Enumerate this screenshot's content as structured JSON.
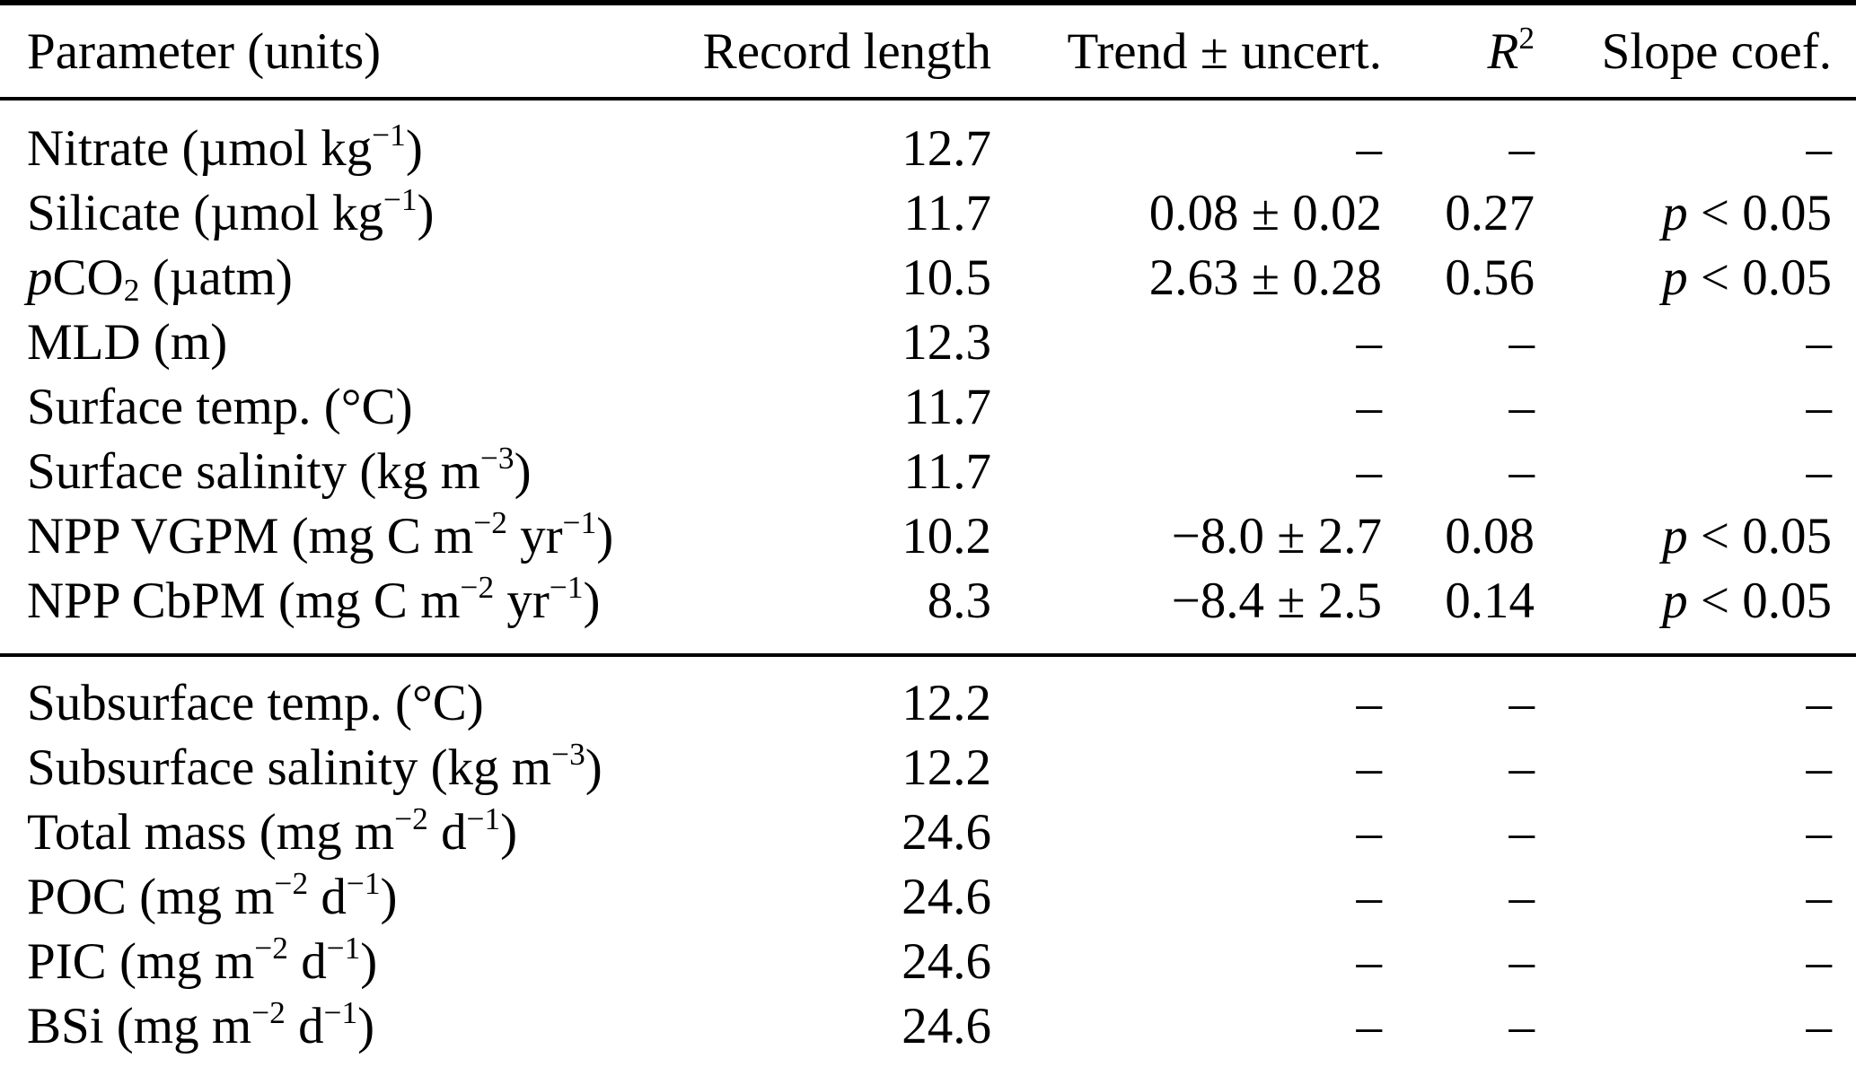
{
  "colors": {
    "background": "#ffffff",
    "text": "#000000",
    "rule": "#000000"
  },
  "table": {
    "header": [
      [
        {
          "t": "Parameter (units)"
        }
      ],
      [
        {
          "t": "Record length"
        }
      ],
      [
        {
          "t": "Trend ± uncert."
        }
      ],
      [
        {
          "t": "R",
          "i": true
        },
        {
          "t": "2",
          "sup": true
        }
      ],
      [
        {
          "t": "Slope coef."
        }
      ]
    ],
    "upper_rows": [
      {
        "param": [
          {
            "t": "Nitrate (µmol kg"
          },
          {
            "t": "−1",
            "sup": true
          },
          {
            "t": ")"
          }
        ],
        "record": "12.7",
        "trend": "–",
        "r2": "–",
        "slope": [
          {
            "t": "–"
          }
        ]
      },
      {
        "param": [
          {
            "t": "Silicate (µmol kg"
          },
          {
            "t": "−1",
            "sup": true
          },
          {
            "t": ")"
          }
        ],
        "record": "11.7",
        "trend": "0.08 ± 0.02",
        "r2": "0.27",
        "slope": [
          {
            "t": "p",
            "i": true
          },
          {
            "t": " < 0.05"
          }
        ]
      },
      {
        "param": [
          {
            "t": "p",
            "i": true
          },
          {
            "t": "CO"
          },
          {
            "t": "2",
            "sub": true
          },
          {
            "t": " (µatm)"
          }
        ],
        "record": "10.5",
        "trend": "2.63 ± 0.28",
        "r2": "0.56",
        "slope": [
          {
            "t": "p",
            "i": true
          },
          {
            "t": " < 0.05"
          }
        ]
      },
      {
        "param": [
          {
            "t": "MLD (m)"
          }
        ],
        "record": "12.3",
        "trend": "–",
        "r2": "–",
        "slope": [
          {
            "t": "–"
          }
        ]
      },
      {
        "param": [
          {
            "t": "Surface temp. (°C)"
          }
        ],
        "record": "11.7",
        "trend": "–",
        "r2": "–",
        "slope": [
          {
            "t": "–"
          }
        ]
      },
      {
        "param": [
          {
            "t": "Surface salinity (kg m"
          },
          {
            "t": "−3",
            "sup": true
          },
          {
            "t": ")"
          }
        ],
        "record": "11.7",
        "trend": "–",
        "r2": "–",
        "slope": [
          {
            "t": "–"
          }
        ]
      },
      {
        "param": [
          {
            "t": "NPP VGPM (mg C m"
          },
          {
            "t": "−2",
            "sup": true
          },
          {
            "t": " yr"
          },
          {
            "t": "−1",
            "sup": true
          },
          {
            "t": ")"
          }
        ],
        "record": "10.2",
        "trend": "−8.0 ± 2.7",
        "r2": "0.08",
        "slope": [
          {
            "t": "p",
            "i": true
          },
          {
            "t": " < 0.05"
          }
        ]
      },
      {
        "param": [
          {
            "t": "NPP CbPM (mg C m"
          },
          {
            "t": "−2",
            "sup": true
          },
          {
            "t": " yr"
          },
          {
            "t": "−1",
            "sup": true
          },
          {
            "t": ")"
          }
        ],
        "record": "8.3",
        "trend": "−8.4 ± 2.5",
        "r2": "0.14",
        "slope": [
          {
            "t": "p",
            "i": true
          },
          {
            "t": " < 0.05"
          }
        ]
      }
    ],
    "lower_rows": [
      {
        "param": [
          {
            "t": "Subsurface temp. (°C)"
          }
        ],
        "record": "12.2",
        "trend": "–",
        "r2": "–",
        "slope": [
          {
            "t": "–"
          }
        ]
      },
      {
        "param": [
          {
            "t": "Subsurface salinity (kg m"
          },
          {
            "t": "−3",
            "sup": true
          },
          {
            "t": ")"
          }
        ],
        "record": "12.2",
        "trend": "–",
        "r2": "–",
        "slope": [
          {
            "t": "–"
          }
        ]
      },
      {
        "param": [
          {
            "t": "Total mass (mg m"
          },
          {
            "t": "−2",
            "sup": true
          },
          {
            "t": " d"
          },
          {
            "t": "−1",
            "sup": true
          },
          {
            "t": ")"
          }
        ],
        "record": "24.6",
        "trend": "–",
        "r2": "–",
        "slope": [
          {
            "t": "–"
          }
        ]
      },
      {
        "param": [
          {
            "t": "POC (mg m"
          },
          {
            "t": "−2",
            "sup": true
          },
          {
            "t": " d"
          },
          {
            "t": "−1",
            "sup": true
          },
          {
            "t": ")"
          }
        ],
        "record": "24.6",
        "trend": "–",
        "r2": "–",
        "slope": [
          {
            "t": "–"
          }
        ]
      },
      {
        "param": [
          {
            "t": "PIC (mg m"
          },
          {
            "t": "−2",
            "sup": true
          },
          {
            "t": " d"
          },
          {
            "t": "−1",
            "sup": true
          },
          {
            "t": ")"
          }
        ],
        "record": "24.6",
        "trend": "–",
        "r2": "–",
        "slope": [
          {
            "t": "–"
          }
        ]
      },
      {
        "param": [
          {
            "t": "BSi (mg m"
          },
          {
            "t": "−2",
            "sup": true
          },
          {
            "t": " d"
          },
          {
            "t": "−1",
            "sup": true
          },
          {
            "t": ")"
          }
        ],
        "record": "24.6",
        "trend": "–",
        "r2": "–",
        "slope": [
          {
            "t": "–"
          }
        ]
      }
    ]
  }
}
